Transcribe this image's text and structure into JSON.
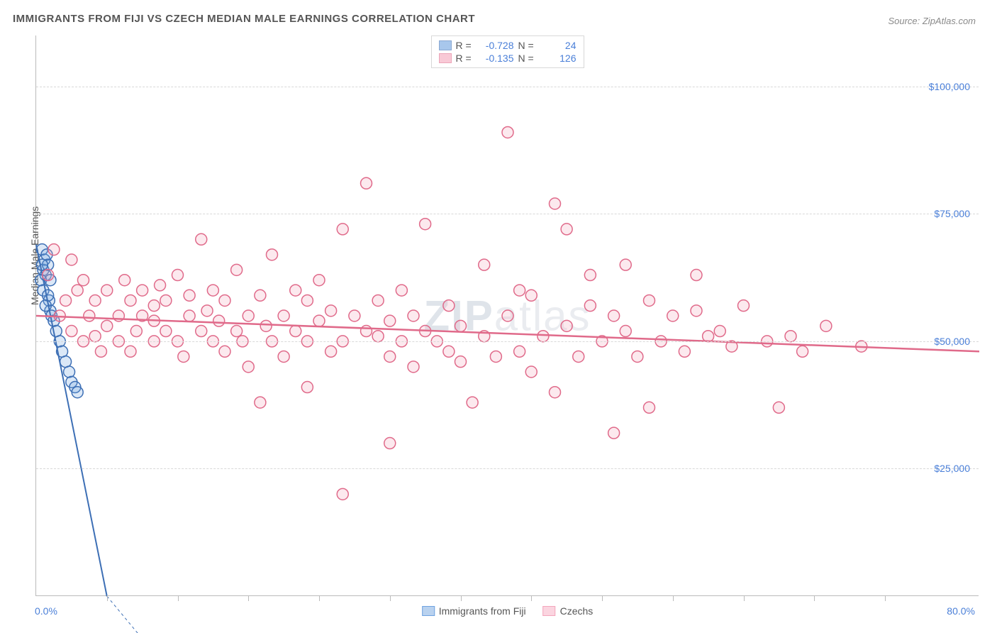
{
  "title": "IMMIGRANTS FROM FIJI VS CZECH MEDIAN MALE EARNINGS CORRELATION CHART",
  "source": "Source: ZipAtlas.com",
  "ylabel": "Median Male Earnings",
  "watermark": "ZIPatlas",
  "chart": {
    "type": "scatter",
    "xlim": [
      0,
      80
    ],
    "ylim": [
      0,
      110000
    ],
    "x_unit": "%",
    "ytick_values": [
      25000,
      50000,
      75000,
      100000
    ],
    "ytick_labels": [
      "$25,000",
      "$50,000",
      "$75,000",
      "$100,000"
    ],
    "xtick_label_min": "0.0%",
    "xtick_label_max": "80.0%",
    "xtick_positions": [
      6,
      12,
      18,
      24,
      30,
      36,
      42,
      48,
      54,
      60,
      66,
      72
    ],
    "grid_color": "#d8d8d8",
    "axis_color": "#bbbbbb",
    "background_color": "#ffffff",
    "marker_radius": 8,
    "marker_stroke_width": 1.5,
    "marker_fill_opacity": 0.25,
    "series": [
      {
        "name": "Immigrants from Fiji",
        "color": "#6fa3e0",
        "stroke": "#3d6fb5",
        "R": "-0.728",
        "N": "24",
        "trend": {
          "x1": 0,
          "y1": 69000,
          "x2": 6,
          "y2": 0,
          "width": 2
        },
        "points": [
          [
            0.5,
            68000
          ],
          [
            0.7,
            66000
          ],
          [
            0.6,
            64000
          ],
          [
            0.8,
            63000
          ],
          [
            0.9,
            67000
          ],
          [
            1.0,
            65000
          ],
          [
            0.4,
            62000
          ],
          [
            0.6,
            60000
          ],
          [
            1.1,
            58000
          ],
          [
            1.2,
            56000
          ],
          [
            1.3,
            55000
          ],
          [
            1.0,
            59000
          ],
          [
            1.5,
            54000
          ],
          [
            1.7,
            52000
          ],
          [
            0.8,
            57000
          ],
          [
            2.0,
            50000
          ],
          [
            2.2,
            48000
          ],
          [
            2.5,
            46000
          ],
          [
            2.8,
            44000
          ],
          [
            3.0,
            42000
          ],
          [
            3.3,
            41000
          ],
          [
            3.5,
            40000
          ],
          [
            1.2,
            62000
          ],
          [
            0.5,
            65000
          ]
        ]
      },
      {
        "name": "Czechs",
        "color": "#f4a6bc",
        "stroke": "#e06a8a",
        "R": "-0.135",
        "N": "126",
        "trend": {
          "x1": 0,
          "y1": 55000,
          "x2": 80,
          "y2": 48000,
          "width": 2.5
        },
        "points": [
          [
            1,
            63000
          ],
          [
            1.5,
            68000
          ],
          [
            2,
            55000
          ],
          [
            2.5,
            58000
          ],
          [
            3,
            52000
          ],
          [
            3,
            66000
          ],
          [
            3.5,
            60000
          ],
          [
            4,
            50000
          ],
          [
            4,
            62000
          ],
          [
            4.5,
            55000
          ],
          [
            5,
            51000
          ],
          [
            5,
            58000
          ],
          [
            5.5,
            48000
          ],
          [
            6,
            53000
          ],
          [
            6,
            60000
          ],
          [
            7,
            55000
          ],
          [
            7,
            50000
          ],
          [
            7.5,
            62000
          ],
          [
            8,
            58000
          ],
          [
            8,
            48000
          ],
          [
            8.5,
            52000
          ],
          [
            9,
            55000
          ],
          [
            9,
            60000
          ],
          [
            10,
            50000
          ],
          [
            10,
            54000
          ],
          [
            10,
            57000
          ],
          [
            10.5,
            61000
          ],
          [
            11,
            52000
          ],
          [
            11,
            58000
          ],
          [
            12,
            50000
          ],
          [
            12,
            63000
          ],
          [
            12.5,
            47000
          ],
          [
            13,
            55000
          ],
          [
            13,
            59000
          ],
          [
            14,
            70000
          ],
          [
            14,
            52000
          ],
          [
            14.5,
            56000
          ],
          [
            15,
            50000
          ],
          [
            15,
            60000
          ],
          [
            15.5,
            54000
          ],
          [
            16,
            48000
          ],
          [
            16,
            58000
          ],
          [
            17,
            52000
          ],
          [
            17,
            64000
          ],
          [
            17.5,
            50000
          ],
          [
            18,
            55000
          ],
          [
            18,
            45000
          ],
          [
            19,
            59000
          ],
          [
            19,
            38000
          ],
          [
            19.5,
            53000
          ],
          [
            20,
            50000
          ],
          [
            20,
            67000
          ],
          [
            21,
            55000
          ],
          [
            21,
            47000
          ],
          [
            22,
            52000
          ],
          [
            22,
            60000
          ],
          [
            23,
            50000
          ],
          [
            23,
            58000
          ],
          [
            23,
            41000
          ],
          [
            24,
            54000
          ],
          [
            24,
            62000
          ],
          [
            25,
            48000
          ],
          [
            25,
            56000
          ],
          [
            26,
            72000
          ],
          [
            26,
            50000
          ],
          [
            26,
            20000
          ],
          [
            27,
            55000
          ],
          [
            28,
            52000
          ],
          [
            28,
            81000
          ],
          [
            29,
            51000
          ],
          [
            29,
            58000
          ],
          [
            30,
            47000
          ],
          [
            30,
            30000
          ],
          [
            30,
            54000
          ],
          [
            31,
            50000
          ],
          [
            31,
            60000
          ],
          [
            32,
            45000
          ],
          [
            32,
            55000
          ],
          [
            33,
            52000
          ],
          [
            33,
            73000
          ],
          [
            34,
            50000
          ],
          [
            35,
            57000
          ],
          [
            35,
            48000
          ],
          [
            36,
            46000
          ],
          [
            36,
            53000
          ],
          [
            37,
            38000
          ],
          [
            38,
            51000
          ],
          [
            38,
            65000
          ],
          [
            39,
            47000
          ],
          [
            40,
            91000
          ],
          [
            40,
            55000
          ],
          [
            41,
            60000
          ],
          [
            41,
            48000
          ],
          [
            42,
            44000
          ],
          [
            42,
            59000
          ],
          [
            43,
            51000
          ],
          [
            44,
            77000
          ],
          [
            44,
            40000
          ],
          [
            45,
            53000
          ],
          [
            45,
            72000
          ],
          [
            46,
            47000
          ],
          [
            47,
            57000
          ],
          [
            47,
            63000
          ],
          [
            48,
            50000
          ],
          [
            49,
            55000
          ],
          [
            49,
            32000
          ],
          [
            50,
            52000
          ],
          [
            50,
            65000
          ],
          [
            51,
            47000
          ],
          [
            52,
            58000
          ],
          [
            52,
            37000
          ],
          [
            53,
            50000
          ],
          [
            54,
            55000
          ],
          [
            55,
            48000
          ],
          [
            56,
            56000
          ],
          [
            56,
            63000
          ],
          [
            57,
            51000
          ],
          [
            58,
            52000
          ],
          [
            59,
            49000
          ],
          [
            60,
            57000
          ],
          [
            62,
            50000
          ],
          [
            63,
            37000
          ],
          [
            64,
            51000
          ],
          [
            65,
            48000
          ],
          [
            67,
            53000
          ],
          [
            70,
            49000
          ]
        ]
      }
    ]
  },
  "legend_bottom": [
    {
      "label": "Immigrants from Fiji",
      "fill": "#b9d2ef",
      "stroke": "#6fa3e0"
    },
    {
      "label": "Czechs",
      "fill": "#fbd5e0",
      "stroke": "#f4a6bc"
    }
  ]
}
